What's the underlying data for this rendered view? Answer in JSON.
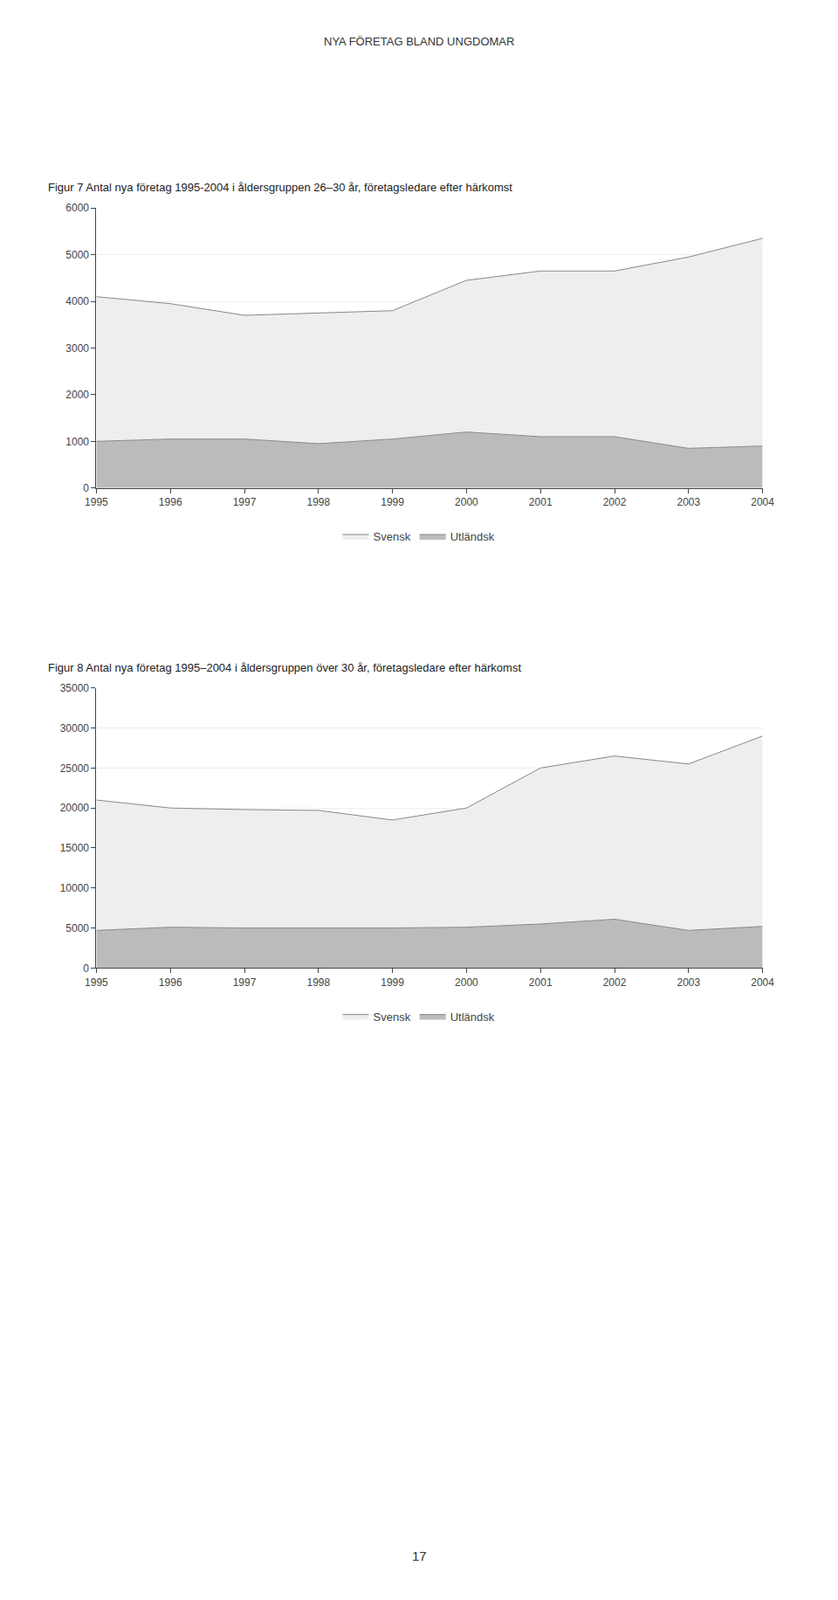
{
  "title": "NYA FÖRETAG BLAND UNGDOMAR",
  "annotations": [
    "17"
  ],
  "chart_data": [
    {
      "type": "area",
      "title": "Figur 7 Antal nya företag 1995-2004 i åldersgruppen 26–30 år, företagsledare efter härkomst",
      "x": [
        1995,
        1996,
        1997,
        1998,
        1999,
        2000,
        2001,
        2002,
        2003,
        2004
      ],
      "series": [
        {
          "name": "Utländsk",
          "color": "#bbbbbb",
          "values": [
            1000,
            1050,
            1050,
            950,
            1050,
            1200,
            1100,
            1100,
            850,
            900
          ]
        },
        {
          "name": "Svensk",
          "color": "#eeeeee",
          "values": [
            4100,
            3950,
            3700,
            3750,
            3800,
            4450,
            4650,
            4650,
            4950,
            5350
          ]
        }
      ],
      "xlim": [
        1995,
        2004
      ],
      "xticks": [
        1995,
        1996,
        1997,
        1998,
        1999,
        2000,
        2001,
        2002,
        2003,
        2004
      ],
      "ylim": [
        0,
        6000
      ],
      "yticks": [
        0,
        1000,
        2000,
        3000,
        4000,
        5000,
        6000
      ],
      "grid": true,
      "stacked": false,
      "legend": "bottom"
    },
    {
      "type": "area",
      "title": "Figur 8 Antal nya företag 1995–2004 i åldersgruppen över 30 år, företagsledare efter härkomst",
      "x": [
        1995,
        1996,
        1997,
        1998,
        1999,
        2000,
        2001,
        2002,
        2003,
        2004
      ],
      "series": [
        {
          "name": "Utländsk",
          "color": "#bbbbbb",
          "values": [
            4700,
            5100,
            5000,
            5000,
            5000,
            5100,
            5500,
            6100,
            4700,
            5200
          ]
        },
        {
          "name": "Svensk",
          "color": "#eeeeee",
          "values": [
            21000,
            20000,
            19800,
            19700,
            18500,
            20000,
            25000,
            26500,
            25500,
            29000
          ]
        }
      ],
      "xlim": [
        1995,
        2004
      ],
      "xticks": [
        1995,
        1996,
        1997,
        1998,
        1999,
        2000,
        2001,
        2002,
        2003,
        2004
      ],
      "ylim": [
        0,
        35000
      ],
      "yticks": [
        0,
        5000,
        10000,
        15000,
        20000,
        25000,
        30000,
        35000
      ],
      "grid": true,
      "stacked": false,
      "legend": "bottom"
    }
  ]
}
